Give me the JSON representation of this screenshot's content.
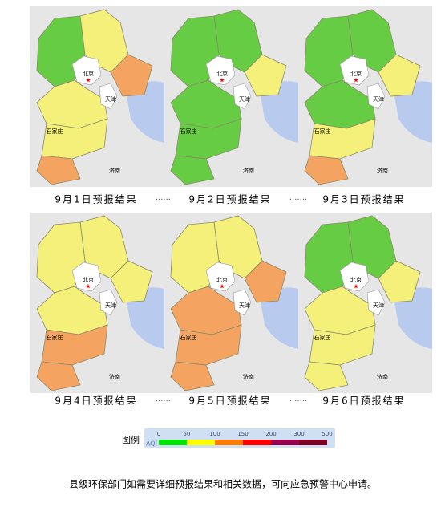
{
  "panels": [
    {
      "caption": "9月1日预报结果",
      "region_colors": [
        "#66cc44",
        "#f5f07a",
        "#f4a460",
        "#f5f07a",
        "#f5f07a",
        "#f4a460"
      ]
    },
    {
      "caption": "9月2日预报结果",
      "region_colors": [
        "#66cc44",
        "#66cc44",
        "#f5f07a",
        "#66cc44",
        "#66cc44",
        "#66cc44"
      ]
    },
    {
      "caption": "9月3日预报结果",
      "region_colors": [
        "#66cc44",
        "#66cc44",
        "#f5f07a",
        "#66cc44",
        "#f5f07a",
        "#f4a460"
      ]
    },
    {
      "caption": "9月4日预报结果",
      "region_colors": [
        "#f5f07a",
        "#f5f07a",
        "#f5f07a",
        "#f5f07a",
        "#f4a460",
        "#f4a460"
      ]
    },
    {
      "caption": "9月5日预报结果",
      "region_colors": [
        "#f5f07a",
        "#f5f07a",
        "#f4a460",
        "#f4a460",
        "#f4a460",
        "#f4a460"
      ]
    },
    {
      "caption": "9月6日预报结果",
      "region_colors": [
        "#66cc44",
        "#66cc44",
        "#f5f07a",
        "#f5f07a",
        "#f5f07a",
        "#f5f07a"
      ]
    }
  ],
  "separator": "·······",
  "cities": [
    "北京",
    "天津",
    "石家庄",
    "济南"
  ],
  "legend": {
    "title": "图例",
    "axis_label": "AQI",
    "ticks": [
      0,
      50,
      100,
      150,
      200,
      300,
      500
    ],
    "colors": [
      "#00e400",
      "#ffff00",
      "#ff7e00",
      "#ff0000",
      "#99004c",
      "#7e0023"
    ]
  },
  "footer": "县级环保部门如需要详细预报结果和相关数据，可向应急预警中心申请。"
}
